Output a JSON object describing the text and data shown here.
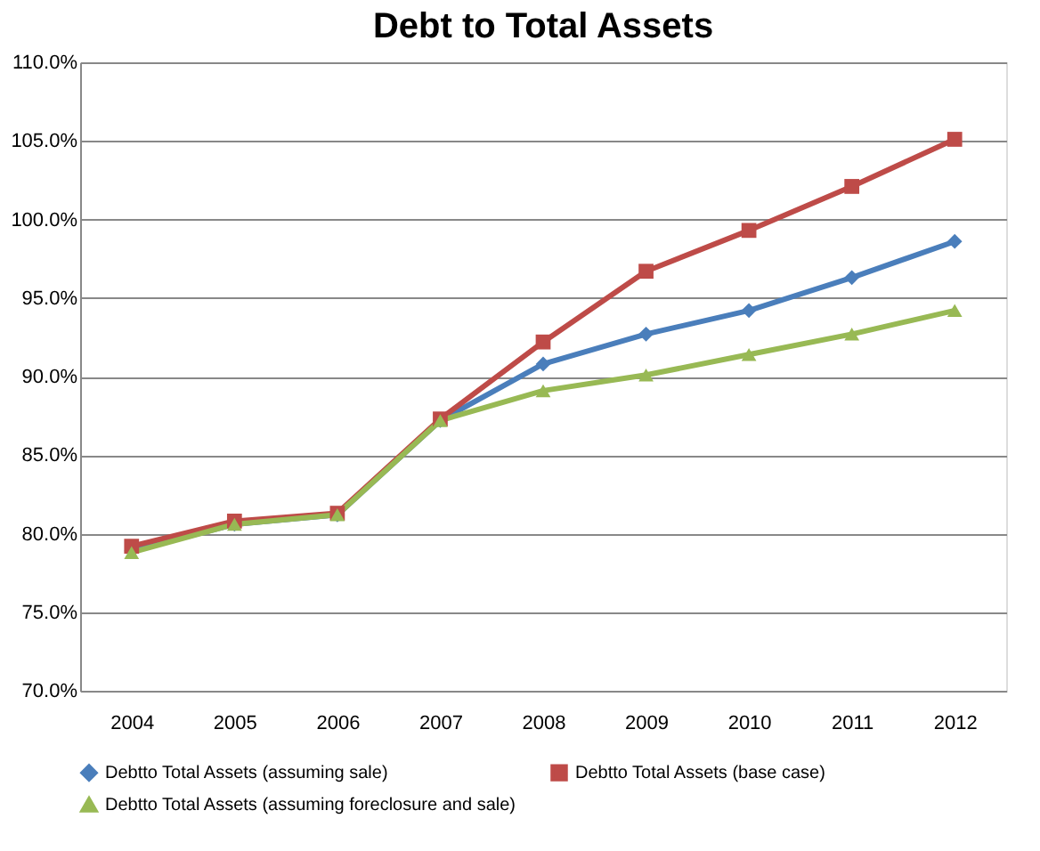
{
  "chart_data": {
    "type": "line",
    "title": "Debt to Total Assets",
    "categories": [
      "2004",
      "2005",
      "2006",
      "2007",
      "2008",
      "2009",
      "2010",
      "2011",
      "2012"
    ],
    "series": [
      {
        "name": "Debtto Total Assets (assuming sale)",
        "color": "#4a7ebb",
        "marker": "diamond",
        "values": [
          78.9,
          80.6,
          81.2,
          87.2,
          90.8,
          92.7,
          94.2,
          96.3,
          98.6
        ]
      },
      {
        "name": "Debtto Total Assets (base case)",
        "color": "#be4b48",
        "marker": "square",
        "values": [
          79.2,
          80.8,
          81.3,
          87.3,
          92.2,
          96.7,
          99.3,
          102.1,
          105.1
        ]
      },
      {
        "name": "Debtto Total Assets (assuming foreclosure and sale)",
        "color": "#98b954",
        "marker": "triangle",
        "values": [
          78.8,
          80.6,
          81.2,
          87.2,
          89.1,
          90.1,
          91.4,
          92.7,
          94.2
        ]
      }
    ],
    "ylim": [
      70,
      110
    ],
    "yticks": [
      {
        "value": 70,
        "label": "70.0%"
      },
      {
        "value": 75,
        "label": "75.0%"
      },
      {
        "value": 80,
        "label": "80.0%"
      },
      {
        "value": 85,
        "label": "85.0%"
      },
      {
        "value": 90,
        "label": "90.0%"
      },
      {
        "value": 95,
        "label": "95.0%"
      },
      {
        "value": 100,
        "label": "100.0%"
      },
      {
        "value": 105,
        "label": "105.0%"
      },
      {
        "value": 110,
        "label": "110.0%"
      }
    ],
    "grid": "y",
    "legend": "bottom",
    "line_style": "solid"
  }
}
